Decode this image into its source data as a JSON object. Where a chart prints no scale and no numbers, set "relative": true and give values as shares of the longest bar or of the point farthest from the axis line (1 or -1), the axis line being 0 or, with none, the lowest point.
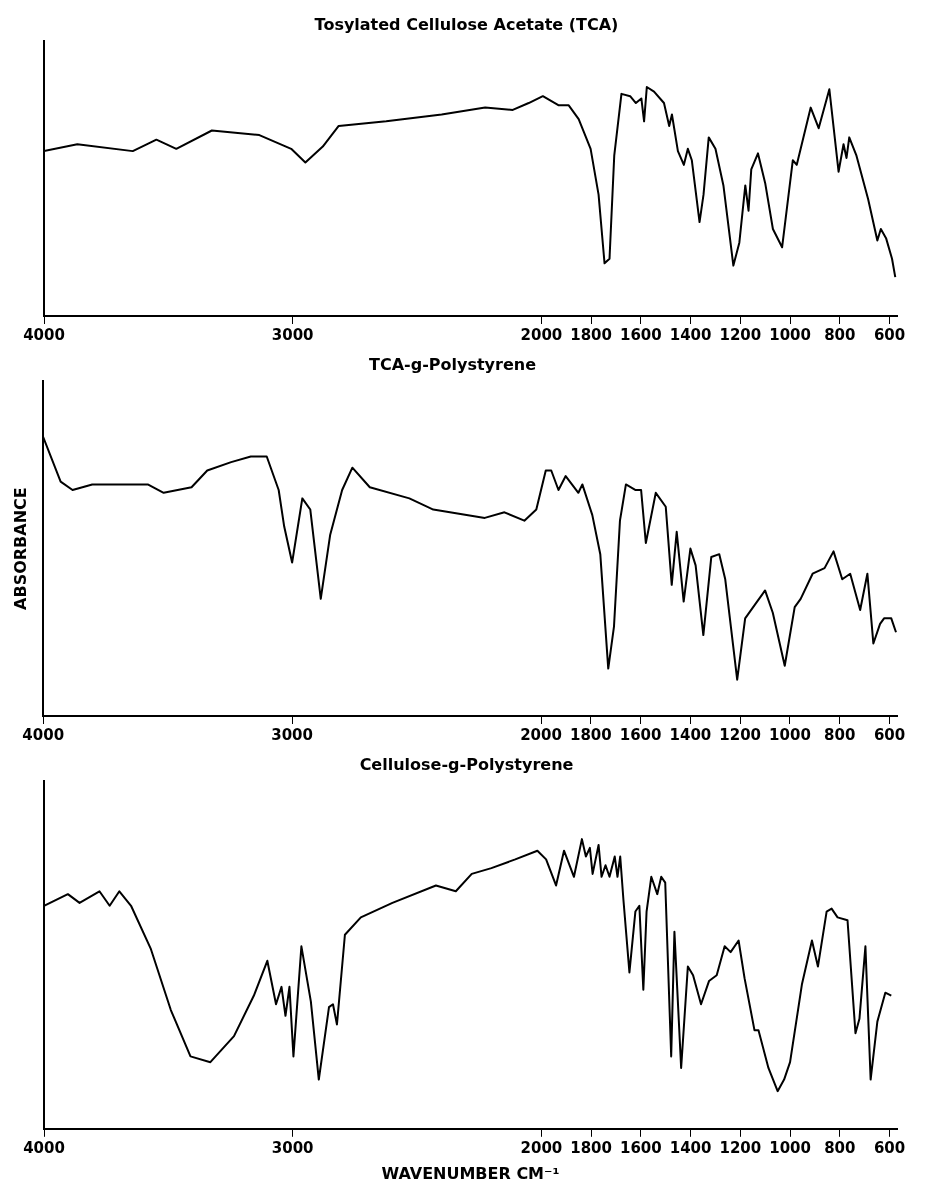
{
  "chart_data": [
    {
      "type": "line",
      "title": "Tosylated Cellulose Acetate (TCA)",
      "relative": true,
      "color": "#000000",
      "xlim": [
        4000,
        570
      ],
      "xticks": [
        4000,
        3000,
        2000,
        1800,
        1600,
        1400,
        1200,
        1000,
        800,
        600
      ],
      "x": [
        4000,
        3866,
        3643,
        3548,
        3468,
        3325,
        3134,
        3006,
        2949,
        2879,
        2815,
        2624,
        2401,
        2226,
        2115,
        2051,
        1994,
        1930,
        1890,
        1850,
        1802,
        1770,
        1746,
        1726,
        1707,
        1678,
        1643,
        1620,
        1598,
        1587,
        1576,
        1547,
        1507,
        1486,
        1475,
        1451,
        1427,
        1411,
        1395,
        1364,
        1348,
        1327,
        1300,
        1268,
        1228,
        1204,
        1180,
        1167,
        1156,
        1129,
        1100,
        1069,
        1032,
        989,
        973,
        917,
        885,
        842,
        805,
        785,
        773,
        762,
        733,
        686,
        649,
        635,
        614,
        590,
        577
      ],
      "values": [
        0.72,
        0.75,
        0.72,
        0.77,
        0.73,
        0.81,
        0.79,
        0.73,
        0.67,
        0.74,
        0.83,
        0.85,
        0.88,
        0.91,
        0.9,
        0.93,
        0.96,
        0.92,
        0.92,
        0.86,
        0.73,
        0.53,
        0.23,
        0.25,
        0.7,
        0.97,
        0.96,
        0.93,
        0.95,
        0.85,
        1.0,
        0.98,
        0.93,
        0.83,
        0.88,
        0.72,
        0.66,
        0.73,
        0.68,
        0.41,
        0.53,
        0.78,
        0.73,
        0.57,
        0.22,
        0.32,
        0.57,
        0.46,
        0.64,
        0.71,
        0.58,
        0.38,
        0.3,
        0.68,
        0.66,
        0.91,
        0.82,
        0.99,
        0.63,
        0.75,
        0.69,
        0.78,
        0.7,
        0.51,
        0.33,
        0.38,
        0.34,
        0.25,
        0.17
      ]
    },
    {
      "type": "line",
      "title": "TCA-g-Polystyrene",
      "ylabel": "ABSORBANCE",
      "relative": true,
      "color": "#000000",
      "xlim": [
        4000,
        570
      ],
      "xticks": [
        4000,
        3000,
        2000,
        1800,
        1600,
        1400,
        1200,
        1000,
        800,
        600
      ],
      "x": [
        4000,
        3930,
        3882,
        3803,
        3580,
        3516,
        3404,
        3341,
        3245,
        3166,
        3102,
        3054,
        3032,
        3000,
        2959,
        2927,
        2885,
        2847,
        2799,
        2758,
        2688,
        2529,
        2433,
        2226,
        2147,
        2067,
        2019,
        1981,
        1959,
        1930,
        1901,
        1850,
        1834,
        1794,
        1762,
        1730,
        1707,
        1683,
        1659,
        1620,
        1598,
        1579,
        1539,
        1499,
        1475,
        1455,
        1427,
        1400,
        1379,
        1348,
        1316,
        1284,
        1260,
        1212,
        1180,
        1140,
        1100,
        1069,
        1021,
        981,
        957,
        909,
        861,
        825,
        790,
        758,
        718,
        689,
        665,
        638,
        622,
        593,
        574
      ],
      "values": [
        1.0,
        0.84,
        0.81,
        0.83,
        0.83,
        0.8,
        0.82,
        0.88,
        0.91,
        0.93,
        0.93,
        0.81,
        0.68,
        0.55,
        0.78,
        0.74,
        0.42,
        0.65,
        0.81,
        0.89,
        0.82,
        0.78,
        0.74,
        0.71,
        0.73,
        0.7,
        0.74,
        0.88,
        0.88,
        0.81,
        0.86,
        0.8,
        0.83,
        0.72,
        0.58,
        0.17,
        0.32,
        0.7,
        0.83,
        0.81,
        0.81,
        0.62,
        0.8,
        0.75,
        0.47,
        0.66,
        0.41,
        0.6,
        0.54,
        0.29,
        0.57,
        0.58,
        0.49,
        0.13,
        0.35,
        0.4,
        0.45,
        0.37,
        0.18,
        0.39,
        0.42,
        0.51,
        0.53,
        0.59,
        0.49,
        0.51,
        0.38,
        0.51,
        0.26,
        0.33,
        0.35,
        0.35,
        0.3
      ]
    },
    {
      "type": "line",
      "title": "Cellulose-g-Polystyrene",
      "xlabel": "WAVENUMBER CM⁻¹",
      "relative": true,
      "color": "#000000",
      "xlim": [
        4000,
        570
      ],
      "xticks": [
        4000,
        3000,
        2000,
        1800,
        1600,
        1400,
        1200,
        1000,
        800,
        600
      ],
      "x": [
        4000,
        3904,
        3857,
        3777,
        3736,
        3697,
        3650,
        3570,
        3490,
        3411,
        3331,
        3236,
        3156,
        3102,
        3067,
        3045,
        3029,
        3013,
        2997,
        2965,
        2927,
        2895,
        2854,
        2838,
        2822,
        2790,
        2726,
        2599,
        2424,
        2344,
        2280,
        2201,
        2105,
        2016,
        1981,
        1941,
        1909,
        1869,
        1837,
        1821,
        1805,
        1794,
        1770,
        1758,
        1742,
        1726,
        1705,
        1694,
        1683,
        1670,
        1646,
        1622,
        1606,
        1590,
        1577,
        1558,
        1534,
        1518,
        1502,
        1478,
        1465,
        1438,
        1411,
        1390,
        1358,
        1326,
        1295,
        1263,
        1239,
        1207,
        1183,
        1143,
        1127,
        1087,
        1050,
        1024,
        1000,
        952,
        912,
        888,
        853,
        833,
        809,
        769,
        737,
        721,
        697,
        676,
        649,
        617,
        593
      ],
      "values": [
        0.77,
        0.81,
        0.78,
        0.82,
        0.77,
        0.82,
        0.77,
        0.62,
        0.41,
        0.25,
        0.23,
        0.32,
        0.46,
        0.58,
        0.43,
        0.49,
        0.39,
        0.49,
        0.25,
        0.63,
        0.44,
        0.17,
        0.42,
        0.43,
        0.36,
        0.67,
        0.73,
        0.78,
        0.84,
        0.82,
        0.88,
        0.9,
        0.93,
        0.96,
        0.93,
        0.84,
        0.96,
        0.87,
        1.0,
        0.94,
        0.97,
        0.88,
        0.98,
        0.87,
        0.91,
        0.87,
        0.94,
        0.87,
        0.94,
        0.79,
        0.54,
        0.75,
        0.77,
        0.48,
        0.75,
        0.87,
        0.81,
        0.87,
        0.85,
        0.25,
        0.68,
        0.21,
        0.56,
        0.53,
        0.43,
        0.51,
        0.53,
        0.63,
        0.61,
        0.65,
        0.52,
        0.34,
        0.34,
        0.21,
        0.13,
        0.17,
        0.23,
        0.5,
        0.65,
        0.56,
        0.75,
        0.76,
        0.73,
        0.72,
        0.33,
        0.38,
        0.63,
        0.17,
        0.37,
        0.47,
        0.46
      ]
    }
  ]
}
